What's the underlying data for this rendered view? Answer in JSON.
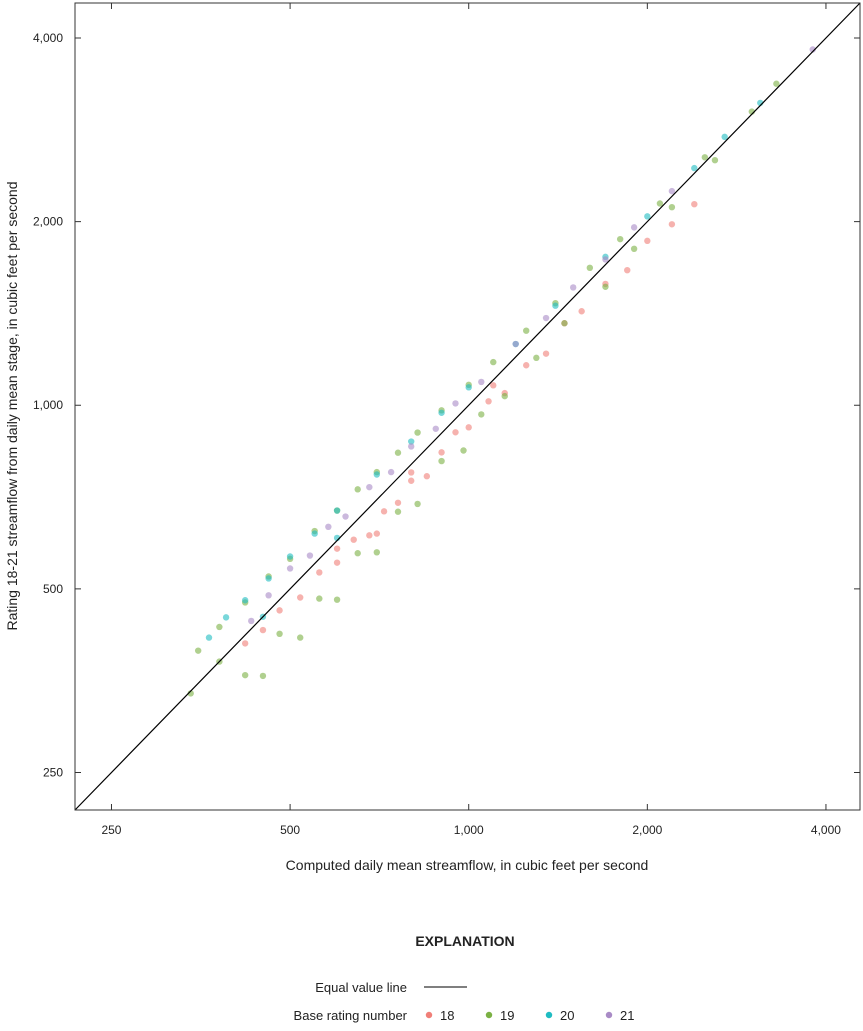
{
  "chart_data": {
    "type": "scatter",
    "xlabel": "Computed daily mean streamflow, in cubic feet per second",
    "ylabel": "Rating 18-21 streamflow from daily mean stage, in cubic feet per second",
    "xscale": "log",
    "yscale": "log",
    "xlim": [
      217,
      4565
    ],
    "ylim": [
      217,
      4565
    ],
    "xticks": [
      250,
      500,
      1000,
      2000,
      4000
    ],
    "xtick_labels": [
      "250",
      "500",
      "1,000",
      "2,000",
      "4,000"
    ],
    "yticks": [
      250,
      500,
      1000,
      2000,
      4000
    ],
    "ytick_labels": [
      "250",
      "500",
      "1,000",
      "2,000",
      "4,000"
    ],
    "grid": false,
    "legend": {
      "title": "EXPLANATION",
      "placement": "bottom",
      "line_label": "Equal value line",
      "group_label": "Base rating number"
    },
    "reference_line": {
      "name": "Equal value line",
      "color": "#000000"
    },
    "series": [
      {
        "name": "18",
        "color": "#f07f78",
        "points": [
          [
            420,
            407
          ],
          [
            450,
            428
          ],
          [
            480,
            461
          ],
          [
            520,
            484
          ],
          [
            560,
            532
          ],
          [
            600,
            552
          ],
          [
            640,
            602
          ],
          [
            680,
            612
          ],
          [
            720,
            670
          ],
          [
            760,
            692
          ],
          [
            800,
            752
          ],
          [
            850,
            765
          ],
          [
            900,
            837
          ],
          [
            950,
            903
          ],
          [
            1000,
            920
          ],
          [
            1080,
            1015
          ],
          [
            1150,
            1047
          ],
          [
            1250,
            1163
          ],
          [
            1350,
            1215
          ],
          [
            1450,
            1363
          ],
          [
            1550,
            1426
          ],
          [
            1700,
            1581
          ],
          [
            1850,
            1665
          ],
          [
            2000,
            1860
          ],
          [
            2200,
            1980
          ],
          [
            2400,
            2136
          ],
          [
            600,
            582
          ],
          [
            800,
            776
          ],
          [
            1100,
            1078
          ],
          [
            700,
            616
          ]
        ]
      },
      {
        "name": "19",
        "color": "#7bb144",
        "points": [
          [
            350,
            396
          ],
          [
            380,
            433
          ],
          [
            420,
            475
          ],
          [
            460,
            524
          ],
          [
            500,
            560
          ],
          [
            550,
            622
          ],
          [
            600,
            672
          ],
          [
            650,
            728
          ],
          [
            700,
            777
          ],
          [
            760,
            836
          ],
          [
            820,
            902
          ],
          [
            900,
            981
          ],
          [
            1000,
            1080
          ],
          [
            1100,
            1177
          ],
          [
            1250,
            1325
          ],
          [
            1400,
            1470
          ],
          [
            1600,
            1680
          ],
          [
            1800,
            1872
          ],
          [
            2100,
            2142
          ],
          [
            2500,
            2550
          ],
          [
            3000,
            3030
          ],
          [
            3300,
            3366
          ],
          [
            340,
            337
          ],
          [
            380,
            380
          ],
          [
            420,
            361
          ],
          [
            450,
            360
          ],
          [
            480,
            422
          ],
          [
            520,
            416
          ],
          [
            560,
            482
          ],
          [
            600,
            480
          ],
          [
            650,
            572
          ],
          [
            700,
            574
          ],
          [
            760,
            669
          ],
          [
            820,
            689
          ],
          [
            900,
            810
          ],
          [
            980,
            843
          ],
          [
            1050,
            966
          ],
          [
            1150,
            1035
          ],
          [
            1300,
            1196
          ],
          [
            1450,
            1363
          ],
          [
            1700,
            1564
          ],
          [
            1900,
            1805
          ],
          [
            2200,
            2112
          ],
          [
            2600,
            2522
          ]
        ]
      },
      {
        "name": "20",
        "color": "#1fbcc2",
        "points": [
          [
            365,
            416
          ],
          [
            390,
            449
          ],
          [
            420,
            479
          ],
          [
            460,
            520
          ],
          [
            500,
            565
          ],
          [
            550,
            616
          ],
          [
            600,
            672
          ],
          [
            700,
            770
          ],
          [
            800,
            872
          ],
          [
            900,
            972
          ],
          [
            1000,
            1070
          ],
          [
            1200,
            1260
          ],
          [
            1400,
            1456
          ],
          [
            1700,
            1751
          ],
          [
            2000,
            2040
          ],
          [
            2400,
            2448
          ],
          [
            2700,
            2754
          ],
          [
            3100,
            3131
          ],
          [
            450,
            450
          ],
          [
            600,
            606
          ]
        ]
      },
      {
        "name": "21",
        "color": "#a98bc6",
        "points": [
          [
            430,
            443
          ],
          [
            460,
            488
          ],
          [
            500,
            540
          ],
          [
            540,
            567
          ],
          [
            580,
            632
          ],
          [
            620,
            657
          ],
          [
            680,
            734
          ],
          [
            740,
            777
          ],
          [
            800,
            856
          ],
          [
            880,
            915
          ],
          [
            950,
            1007
          ],
          [
            1050,
            1092
          ],
          [
            1200,
            1260
          ],
          [
            1350,
            1390
          ],
          [
            1500,
            1560
          ],
          [
            1700,
            1734
          ],
          [
            1900,
            1957
          ],
          [
            2200,
            2244
          ],
          [
            3800,
            3830
          ]
        ]
      }
    ]
  }
}
